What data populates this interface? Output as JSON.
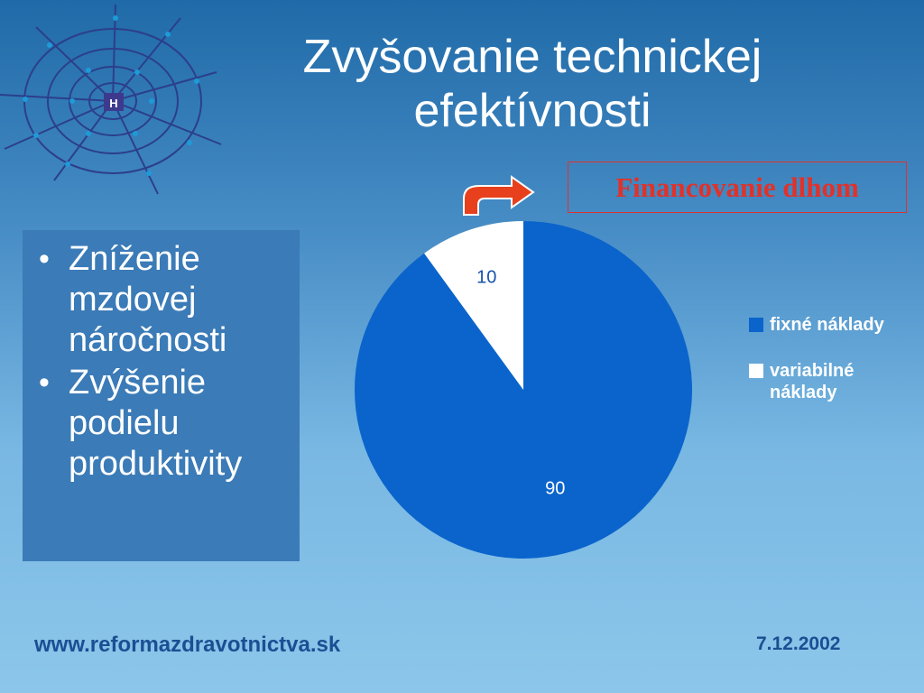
{
  "title": {
    "line1": "Zvyšovanie technickej",
    "line2": "efektívnosti"
  },
  "callout": {
    "text": "Financovanie dlhom",
    "color": "#e0322a"
  },
  "logo": {
    "letter": "H",
    "icon": "spider-web-logo"
  },
  "bullets": [
    {
      "text": "Zníženie mzdovej náročnosti"
    },
    {
      "text": "Zvýšenie podielu produktivity"
    }
  ],
  "bullet_symbol": "•",
  "chart_data": {
    "type": "pie",
    "categories": [
      "fixné náklady",
      "variabilné náklady"
    ],
    "values": [
      90,
      10
    ],
    "colors": [
      "#0a64cc",
      "#ffffff"
    ],
    "label_colors": [
      "#ffffff",
      "#1553a8"
    ],
    "legend_position": "right"
  },
  "footer": {
    "url": "www.reformazdravotnictva.sk",
    "date": "7.12.2002"
  }
}
